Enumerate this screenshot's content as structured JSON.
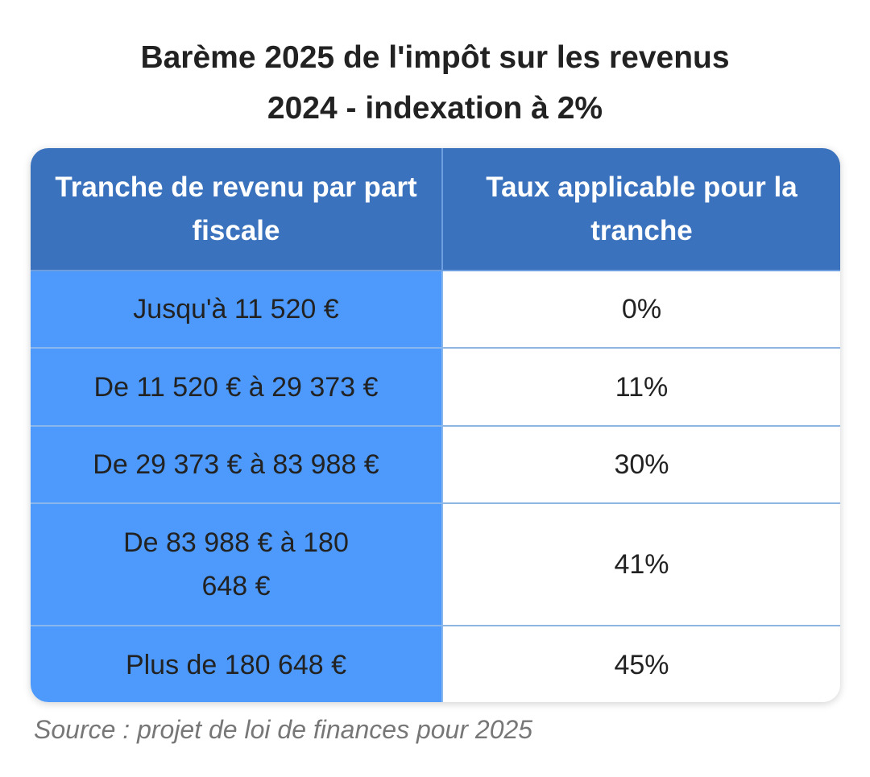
{
  "chart_data": {
    "type": "table",
    "title_lines": [
      "Barème 2025 de l'impôt sur les revenus",
      "2024 - indexation à 2%"
    ],
    "columns": [
      "Tranche de revenu par part fiscale",
      "Taux applicable pour la tranche"
    ],
    "rows": [
      {
        "range": "Jusqu'à 11 520 €",
        "rate": "0%"
      },
      {
        "range": "De 11 520 € à 29 373 €",
        "rate": "11%"
      },
      {
        "range": "De 29 373 € à 83 988 €",
        "rate": "30%"
      },
      {
        "range": "De 83 988 € à 180 648 €",
        "rate": "41%"
      },
      {
        "range": "Plus de 180 648 €",
        "rate": "45%"
      }
    ],
    "source": "Source : projet de loi de finances pour 2025"
  },
  "colors": {
    "header_bg": "#3a72bd",
    "range_cell_bg": "#4d9afc",
    "rate_cell_bg": "#ffffff",
    "source_text": "#777777"
  }
}
